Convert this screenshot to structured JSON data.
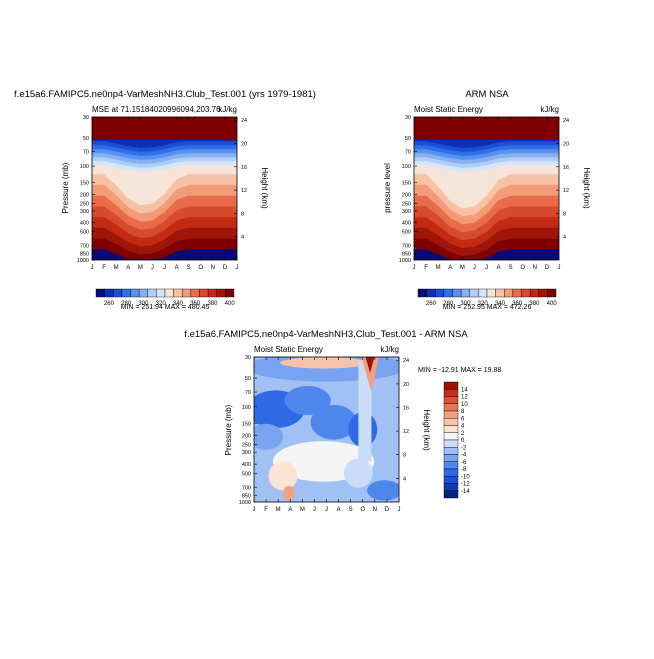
{
  "chart_data": [
    {
      "type": "heatmap",
      "id": "model",
      "title": "f.e15a6.FAMIPC5.ne0np4-VarMeshNH3.Club_Test.001 (yrs 1979-1981)",
      "left_title": "MSE at 71.15184020996094,203.76",
      "right_title": "kJ/kg",
      "ylabel": "Pressure (mb)",
      "ylabel_right": "Height (km)",
      "months": [
        "J",
        "F",
        "M",
        "A",
        "M",
        "J",
        "J",
        "A",
        "S",
        "O",
        "N",
        "D",
        "J"
      ],
      "pressure_ticks": [
        "30",
        "50",
        "70",
        "100",
        "150",
        "200",
        "250",
        "300",
        "400",
        "500",
        "700",
        "850",
        "1000"
      ],
      "height_ticks": [
        "24",
        "20",
        "16",
        "12",
        "8",
        "4"
      ],
      "stats": "MIN = 251.94   MAX = 480.45",
      "colorbar_labels": [
        "260",
        "280",
        "300",
        "320",
        "340",
        "360",
        "380",
        "400"
      ],
      "min": 251.94,
      "max": 480.45
    },
    {
      "type": "heatmap",
      "id": "obs",
      "title": "ARM NSA",
      "left_title": "Moist Static Energy",
      "right_title": "kJ/kg",
      "ylabel": "pressure level",
      "ylabel_right": "Height (km)",
      "months": [
        "J",
        "F",
        "M",
        "A",
        "M",
        "J",
        "J",
        "A",
        "S",
        "O",
        "N",
        "D",
        "J"
      ],
      "pressure_ticks": [
        "30",
        "50",
        "70",
        "100",
        "150",
        "200",
        "250",
        "300",
        "400",
        "500",
        "700",
        "850",
        "1000"
      ],
      "height_ticks": [
        "24",
        "20",
        "16",
        "12",
        "8",
        "4"
      ],
      "stats": "MIN = 252.95   MAX = 472.26",
      "colorbar_labels": [
        "260",
        "280",
        "300",
        "320",
        "340",
        "360",
        "380",
        "400"
      ],
      "min": 252.95,
      "max": 472.26
    },
    {
      "type": "heatmap",
      "id": "diff",
      "title": "f.e15a6.FAMIPC5.ne0np4-VarMeshNH3.Club_Test.001 - ARM NSA",
      "left_title": "Moist Static Energy",
      "right_title": "kJ/kg",
      "ylabel": "Pressure (mb)",
      "ylabel_right": "Height (km)",
      "months": [
        "J",
        "F",
        "M",
        "A",
        "M",
        "J",
        "J",
        "A",
        "S",
        "O",
        "N",
        "D",
        "J"
      ],
      "pressure_ticks": [
        "30",
        "50",
        "70",
        "100",
        "150",
        "200",
        "250",
        "300",
        "400",
        "500",
        "700",
        "850",
        "1000"
      ],
      "height_ticks": [
        "24",
        "20",
        "16",
        "12",
        "8",
        "4"
      ],
      "stats": "MIN = -12.91   MAX =  19.88",
      "colorbar_labels": [
        "14",
        "12",
        "10",
        "8",
        "6",
        "4",
        "2",
        "0",
        "-2",
        "-4",
        "-6",
        "-8",
        "-10",
        "-12",
        "-14"
      ],
      "min": -12.91,
      "max": 19.88
    }
  ],
  "colors": {
    "mse_scale": [
      "#0a0a78",
      "#0d2fb4",
      "#1a4fd6",
      "#2f6fe8",
      "#5890ee",
      "#86b0f2",
      "#b0cdf6",
      "#d6e6fa",
      "#f7e4d8",
      "#f7c1a5",
      "#f39a77",
      "#e86c4a",
      "#d84a2c",
      "#c22a14",
      "#a0150a",
      "#800000"
    ],
    "diff_scale": [
      "#08247a",
      "#0d3ab8",
      "#1a52d4",
      "#2f6ae6",
      "#4f86ec",
      "#77a3f0",
      "#a1c1f4",
      "#c9dcf8",
      "#f5f5f5",
      "#fbe3d3",
      "#f7c4a9",
      "#f2a07f",
      "#e97755",
      "#dc5132",
      "#c4301a",
      "#9e1005"
    ]
  }
}
